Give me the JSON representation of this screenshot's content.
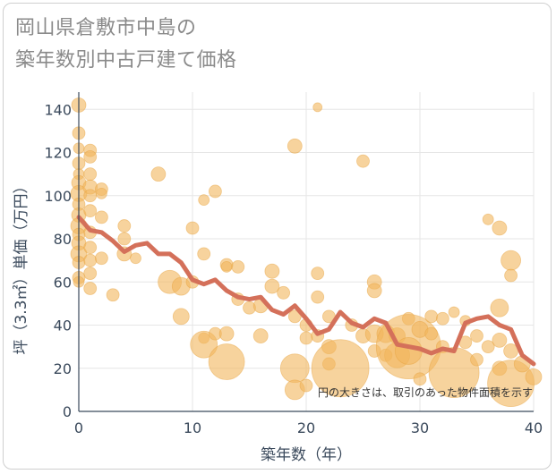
{
  "title_lines": [
    "岡山県倉敷市中島の",
    "築年数別中古戸建て価格"
  ],
  "note": "円の大きさは、取引のあった物件面積を示す",
  "colors": {
    "bubble": "#f2b65c",
    "bubble_stroke": "#e8a440",
    "line": "#d4705a",
    "grid": "#e6e6e6",
    "axis": "#3b4a5c"
  },
  "chart_data": {
    "type": "scatter",
    "xlabel": "築年数（年）",
    "ylabel": "坪（3.3㎡）単価（万円）",
    "xlim": [
      0,
      40
    ],
    "ylim": [
      0,
      148
    ],
    "xticks": [
      0,
      10,
      20,
      30,
      40
    ],
    "yticks": [
      0,
      20,
      40,
      60,
      80,
      100,
      120,
      140
    ],
    "grid": true,
    "bubbles": [
      {
        "x": 0,
        "y": 142,
        "r": 8
      },
      {
        "x": 0,
        "y": 129,
        "r": 7
      },
      {
        "x": 0,
        "y": 122,
        "r": 6
      },
      {
        "x": 0,
        "y": 115,
        "r": 7
      },
      {
        "x": 0,
        "y": 110,
        "r": 6
      },
      {
        "x": 0,
        "y": 106,
        "r": 8
      },
      {
        "x": 0,
        "y": 101,
        "r": 9
      },
      {
        "x": 0,
        "y": 96,
        "r": 7
      },
      {
        "x": 0,
        "y": 91,
        "r": 8
      },
      {
        "x": 0,
        "y": 86,
        "r": 9
      },
      {
        "x": 0,
        "y": 82,
        "r": 7
      },
      {
        "x": 0,
        "y": 78,
        "r": 8
      },
      {
        "x": 0,
        "y": 73,
        "r": 9
      },
      {
        "x": 0,
        "y": 69,
        "r": 7
      },
      {
        "x": 0,
        "y": 62,
        "r": 7
      },
      {
        "x": 0,
        "y": 60,
        "r": 6
      },
      {
        "x": 1,
        "y": 121,
        "r": 7
      },
      {
        "x": 1,
        "y": 118,
        "r": 7
      },
      {
        "x": 1,
        "y": 110,
        "r": 7
      },
      {
        "x": 1,
        "y": 104,
        "r": 8
      },
      {
        "x": 1,
        "y": 100,
        "r": 7
      },
      {
        "x": 1,
        "y": 93,
        "r": 7
      },
      {
        "x": 1,
        "y": 83,
        "r": 7
      },
      {
        "x": 1,
        "y": 76,
        "r": 7
      },
      {
        "x": 1,
        "y": 70,
        "r": 7
      },
      {
        "x": 1,
        "y": 64,
        "r": 7
      },
      {
        "x": 1,
        "y": 57,
        "r": 7
      },
      {
        "x": 2,
        "y": 103,
        "r": 7
      },
      {
        "x": 2,
        "y": 101,
        "r": 6
      },
      {
        "x": 2,
        "y": 90,
        "r": 7
      },
      {
        "x": 2,
        "y": 71,
        "r": 7
      },
      {
        "x": 3,
        "y": 54,
        "r": 7
      },
      {
        "x": 4,
        "y": 86,
        "r": 7
      },
      {
        "x": 4,
        "y": 80,
        "r": 7
      },
      {
        "x": 4,
        "y": 73,
        "r": 8
      },
      {
        "x": 5,
        "y": 71,
        "r": 6
      },
      {
        "x": 7,
        "y": 110,
        "r": 8
      },
      {
        "x": 8,
        "y": 60,
        "r": 13
      },
      {
        "x": 9,
        "y": 58,
        "r": 10
      },
      {
        "x": 9,
        "y": 44,
        "r": 9
      },
      {
        "x": 10,
        "y": 85,
        "r": 7
      },
      {
        "x": 10,
        "y": 60,
        "r": 7
      },
      {
        "x": 11,
        "y": 98,
        "r": 6
      },
      {
        "x": 11,
        "y": 73,
        "r": 7
      },
      {
        "x": 11,
        "y": 34,
        "r": 6
      },
      {
        "x": 11,
        "y": 31,
        "r": 15
      },
      {
        "x": 12,
        "y": 102,
        "r": 7
      },
      {
        "x": 12,
        "y": 36,
        "r": 7
      },
      {
        "x": 13,
        "y": 68,
        "r": 7
      },
      {
        "x": 13,
        "y": 67,
        "r": 6
      },
      {
        "x": 13,
        "y": 36,
        "r": 8
      },
      {
        "x": 13,
        "y": 23,
        "r": 20
      },
      {
        "x": 14,
        "y": 67,
        "r": 7
      },
      {
        "x": 14,
        "y": 52,
        "r": 7
      },
      {
        "x": 15,
        "y": 48,
        "r": 7
      },
      {
        "x": 16,
        "y": 49,
        "r": 8
      },
      {
        "x": 16,
        "y": 35,
        "r": 8
      },
      {
        "x": 17,
        "y": 65,
        "r": 8
      },
      {
        "x": 17,
        "y": 58,
        "r": 8
      },
      {
        "x": 18,
        "y": 55,
        "r": 7
      },
      {
        "x": 19,
        "y": 123,
        "r": 8
      },
      {
        "x": 19,
        "y": 44,
        "r": 7
      },
      {
        "x": 19,
        "y": 20,
        "r": 16
      },
      {
        "x": 19,
        "y": 10,
        "r": 11
      },
      {
        "x": 20,
        "y": 40,
        "r": 7
      },
      {
        "x": 20,
        "y": 34,
        "r": 7
      },
      {
        "x": 20,
        "y": 12,
        "r": 7
      },
      {
        "x": 21,
        "y": 141,
        "r": 5
      },
      {
        "x": 21,
        "y": 64,
        "r": 7
      },
      {
        "x": 21,
        "y": 53,
        "r": 7
      },
      {
        "x": 21,
        "y": 35,
        "r": 7
      },
      {
        "x": 22,
        "y": 44,
        "r": 7
      },
      {
        "x": 22,
        "y": 30,
        "r": 8
      },
      {
        "x": 22,
        "y": 22,
        "r": 7
      },
      {
        "x": 23,
        "y": 20,
        "r": 32
      },
      {
        "x": 24,
        "y": 40,
        "r": 7
      },
      {
        "x": 25,
        "y": 116,
        "r": 7
      },
      {
        "x": 25,
        "y": 35,
        "r": 8
      },
      {
        "x": 26,
        "y": 60,
        "r": 8
      },
      {
        "x": 26,
        "y": 56,
        "r": 8
      },
      {
        "x": 26,
        "y": 36,
        "r": 10
      },
      {
        "x": 26,
        "y": 28,
        "r": 7
      },
      {
        "x": 27,
        "y": 36,
        "r": 10
      },
      {
        "x": 27,
        "y": 26,
        "r": 7
      },
      {
        "x": 28,
        "y": 35,
        "r": 9
      },
      {
        "x": 28,
        "y": 26,
        "r": 14
      },
      {
        "x": 29,
        "y": 43,
        "r": 7
      },
      {
        "x": 29,
        "y": 30,
        "r": 36
      },
      {
        "x": 29,
        "y": 28,
        "r": 15
      },
      {
        "x": 30,
        "y": 38,
        "r": 9
      },
      {
        "x": 30,
        "y": 15,
        "r": 7
      },
      {
        "x": 31,
        "y": 44,
        "r": 7
      },
      {
        "x": 31,
        "y": 36,
        "r": 7
      },
      {
        "x": 32,
        "y": 43,
        "r": 7
      },
      {
        "x": 32,
        "y": 30,
        "r": 7
      },
      {
        "x": 33,
        "y": 46,
        "r": 6
      },
      {
        "x": 33,
        "y": 18,
        "r": 28
      },
      {
        "x": 34,
        "y": 42,
        "r": 6
      },
      {
        "x": 34,
        "y": 32,
        "r": 7
      },
      {
        "x": 35,
        "y": 35,
        "r": 7
      },
      {
        "x": 35,
        "y": 24,
        "r": 7
      },
      {
        "x": 36,
        "y": 89,
        "r": 6
      },
      {
        "x": 36,
        "y": 30,
        "r": 7
      },
      {
        "x": 37,
        "y": 85,
        "r": 8
      },
      {
        "x": 37,
        "y": 48,
        "r": 10
      },
      {
        "x": 37,
        "y": 33,
        "r": 8
      },
      {
        "x": 37,
        "y": 20,
        "r": 8
      },
      {
        "x": 38,
        "y": 70,
        "r": 11
      },
      {
        "x": 38,
        "y": 63,
        "r": 7
      },
      {
        "x": 38,
        "y": 28,
        "r": 8
      },
      {
        "x": 38,
        "y": 13,
        "r": 26
      },
      {
        "x": 39,
        "y": 22,
        "r": 9
      },
      {
        "x": 40,
        "y": 16,
        "r": 9
      }
    ],
    "trend_line": {
      "x": [
        0,
        1,
        2,
        3,
        4,
        5,
        6,
        7,
        8,
        9,
        10,
        11,
        12,
        13,
        14,
        15,
        16,
        17,
        18,
        19,
        20,
        21,
        22,
        23,
        24,
        25,
        26,
        27,
        28,
        29,
        30,
        31,
        32,
        33,
        34,
        35,
        36,
        37,
        38,
        39,
        40
      ],
      "y": [
        90,
        84,
        83,
        79,
        74,
        77,
        78,
        73,
        73,
        69,
        61,
        59,
        61,
        56,
        53,
        52,
        53,
        47,
        45,
        49,
        43,
        36,
        38,
        46,
        41,
        39,
        43,
        41,
        31,
        30,
        29,
        27,
        29,
        28,
        41,
        43,
        44,
        40,
        38,
        26,
        22
      ]
    }
  }
}
